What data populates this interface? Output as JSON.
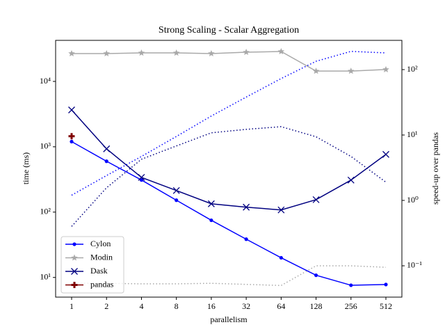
{
  "chart_data": {
    "type": "line",
    "title": "Strong Scaling - Scalar Aggregation",
    "xlabel": "parallelism",
    "ylabel": "time (ms)",
    "y2label": "speed-up over pandas",
    "categories": [
      "1",
      "2",
      "4",
      "8",
      "16",
      "32",
      "64",
      "128",
      "256",
      "512"
    ],
    "ylim": [
      5,
      42500
    ],
    "ylog": true,
    "yticks": [
      {
        "value": 10,
        "label": "10¹"
      },
      {
        "value": 100,
        "label": "10²"
      },
      {
        "value": 1000,
        "label": "10³"
      },
      {
        "value": 10000,
        "label": "10⁴"
      }
    ],
    "y2lim": [
      0.0332,
      280
    ],
    "y2log": true,
    "y2ticks": [
      {
        "value": 0.1,
        "label": "10⁻¹"
      },
      {
        "value": 1,
        "label": "10⁰"
      },
      {
        "value": 10,
        "label": "10¹"
      },
      {
        "value": 100,
        "label": "10²"
      }
    ],
    "legend": "lower left",
    "series": [
      {
        "name": "Cylon",
        "color": "#0000ff",
        "marker": "dot",
        "values": [
          1200,
          600,
          310,
          152,
          75,
          38.5,
          20,
          10.8,
          7.6,
          7.8
        ]
      },
      {
        "name": "Modin",
        "color": "#a9a9a9",
        "marker": "star",
        "values": [
          26700,
          26700,
          27300,
          27300,
          26700,
          28000,
          28700,
          14400,
          14400,
          15200
        ]
      },
      {
        "name": "Dask",
        "color": "#000080",
        "marker": "x",
        "values": [
          3660,
          930,
          340,
          214,
          134,
          119,
          108,
          155,
          309,
          764
        ]
      },
      {
        "name": "pandas",
        "color": "#800000",
        "marker": "plus",
        "values": [
          1450,
          null,
          null,
          null,
          null,
          null,
          null,
          null,
          null,
          null
        ]
      },
      {
        "color": "#0000ff",
        "dashed": true,
        "axis": "y2",
        "values": [
          1.2,
          2.4,
          4.7,
          9.5,
          19.5,
          38,
          73,
          134,
          190,
          180
        ]
      },
      {
        "color": "#000080",
        "dashed": true,
        "axis": "y2",
        "values": [
          0.4,
          1.56,
          4.26,
          6.8,
          10.8,
          12.2,
          13.4,
          9.4,
          4.7,
          1.9
        ]
      },
      {
        "color": "#a9a9a9",
        "dashed": true,
        "axis": "y2",
        "values": [
          0.054,
          0.054,
          0.053,
          0.053,
          0.054,
          0.052,
          0.05,
          0.1,
          0.1,
          0.095
        ]
      }
    ]
  }
}
